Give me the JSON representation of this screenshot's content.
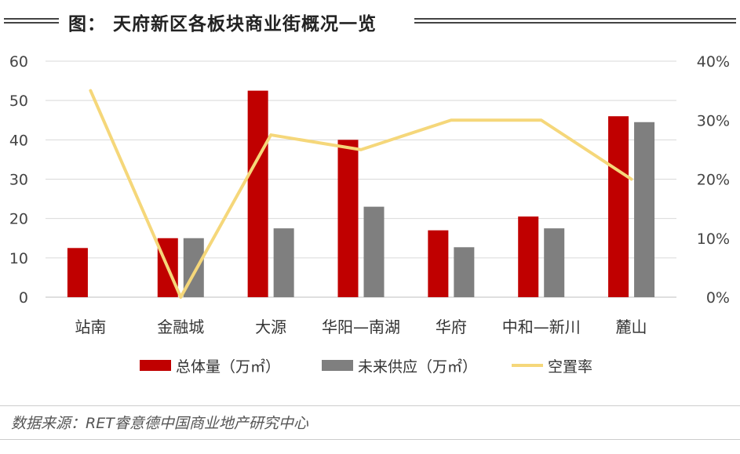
{
  "header": {
    "title": "图： 天府新区各板块商业街概况一览"
  },
  "chart_data": {
    "type": "bar",
    "categories": [
      "站南",
      "金融城",
      "大源",
      "华阳—南湖",
      "华府",
      "中和—新川",
      "麓山"
    ],
    "series": [
      {
        "name": "总体量（万㎡）",
        "kind": "bar",
        "axis": "left",
        "color": "#c00000",
        "values": [
          12.5,
          15,
          52.5,
          40,
          17,
          20.5,
          46
        ]
      },
      {
        "name": "未来供应（万㎡）",
        "kind": "bar",
        "axis": "left",
        "color": "#7f7f7f",
        "values": [
          null,
          15,
          17.5,
          23,
          12.7,
          17.5,
          44.5
        ]
      },
      {
        "name": "空置率",
        "kind": "line",
        "axis": "right",
        "color": "#f5d77a",
        "values": [
          0.35,
          0.0,
          0.275,
          0.25,
          0.3,
          0.3,
          0.2
        ]
      }
    ],
    "ylim_left": [
      0,
      60
    ],
    "yticks_left": [
      "0",
      "10",
      "20",
      "30",
      "40",
      "50",
      "60"
    ],
    "ylim_right": [
      0,
      0.4
    ],
    "yticks_right": [
      "0%",
      "10%",
      "20%",
      "30%",
      "40%"
    ],
    "grid": true,
    "legend_position": "bottom"
  },
  "footer": {
    "source": "数据来源：RET睿意德中国商业地产研究中心"
  }
}
